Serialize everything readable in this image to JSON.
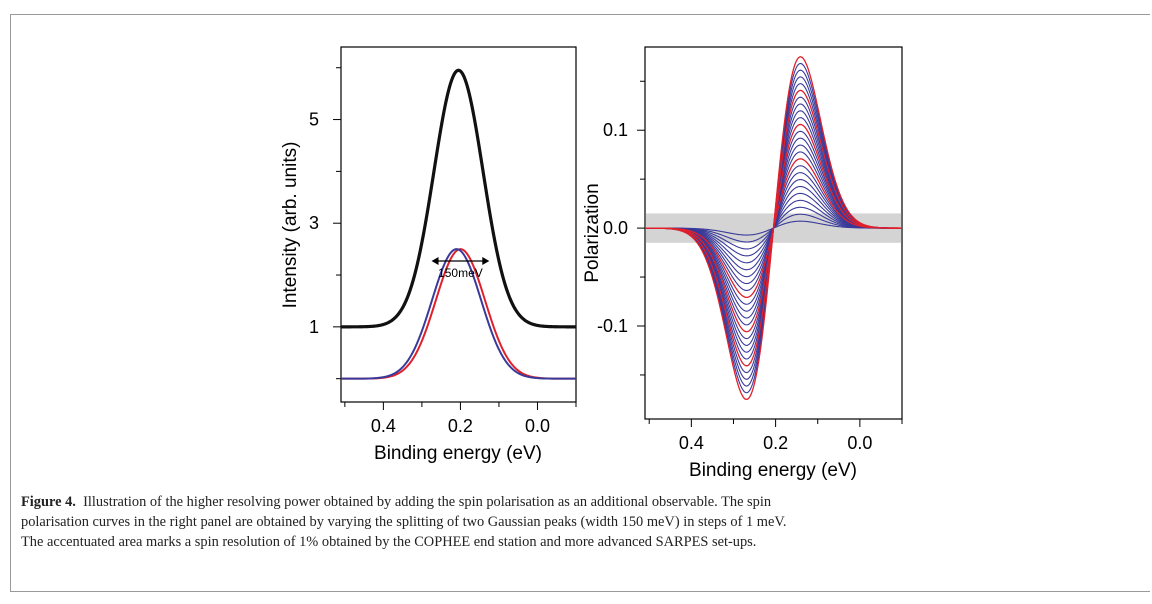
{
  "figure": {
    "label": "Figure 4.",
    "caption_lines": [
      "Illustration of the higher resolving power obtained by adding the spin polarisation as an additional observable. The spin",
      "polarisation curves in the right panel are obtained by varying the splitting of two Gaussian peaks (width 150 meV) in steps of 1 meV.",
      "The accentuated area marks a spin resolution of 1% obtained by the COPHEE end station and more advanced SARPES set-ups."
    ]
  },
  "colors": {
    "black": "#111111",
    "red": "#e0202a",
    "blue": "#3a3a9a",
    "band": "#d4d4d4"
  },
  "chart_data": [
    {
      "type": "line",
      "panel": "left",
      "xlabel": "Binding energy (eV)",
      "ylabel": "Intensity (arb. units)",
      "x_reversed": true,
      "xlim": [
        0.51,
        -0.1
      ],
      "ylim": [
        -0.45,
        6.4
      ],
      "xticks": [
        0.4,
        0.2,
        0.0
      ],
      "xtick_labels": [
        "0.4",
        "0.2",
        "0.0"
      ],
      "yticks": [
        1,
        3,
        5
      ],
      "ytick_labels": [
        "1",
        "3",
        "5"
      ],
      "annotation": {
        "text": "150meV",
        "arrow_from": 0.275,
        "arrow_to": 0.125,
        "y": 2.27
      },
      "series": [
        {
          "color": "black",
          "center": 0.205,
          "fwhm": 0.15,
          "amplitude": 4.95,
          "baseline": 1.0,
          "width": 3.2
        },
        {
          "color": "blue",
          "center": 0.21,
          "fwhm": 0.15,
          "amplitude": 2.5,
          "baseline": 0.0,
          "width": 2
        },
        {
          "color": "red",
          "center": 0.2,
          "fwhm": 0.15,
          "amplitude": 2.5,
          "baseline": 0.0,
          "width": 2
        }
      ]
    },
    {
      "type": "line",
      "panel": "right",
      "xlabel": "Binding energy (eV)",
      "ylabel": "Polarization",
      "x_reversed": true,
      "xlim": [
        0.51,
        -0.1
      ],
      "ylim": [
        -0.195,
        0.185
      ],
      "xticks": [
        0.4,
        0.2,
        0.0
      ],
      "xtick_labels": [
        "0.4",
        "0.2",
        "0.0"
      ],
      "yticks": [
        0.1,
        0.0,
        -0.1
      ],
      "ytick_labels": [
        "0.1",
        "0.0",
        "-0.1"
      ],
      "shaded_band": {
        "from": -0.015,
        "to": 0.015
      },
      "curves": {
        "center": 0.205,
        "fwhm": 0.15,
        "splittings": [
          0.001,
          0.002,
          0.003,
          0.004,
          0.005,
          0.006,
          0.007,
          0.008,
          0.009,
          0.01,
          0.011,
          0.012,
          0.013,
          0.014,
          0.015,
          0.016,
          0.017,
          0.018,
          0.019,
          0.02,
          0.021,
          0.022,
          0.023,
          0.024,
          0.025
        ],
        "red_splittings": [
          0.01,
          0.015,
          0.02,
          0.025
        ],
        "peak_polarization": 0.175
      }
    }
  ]
}
